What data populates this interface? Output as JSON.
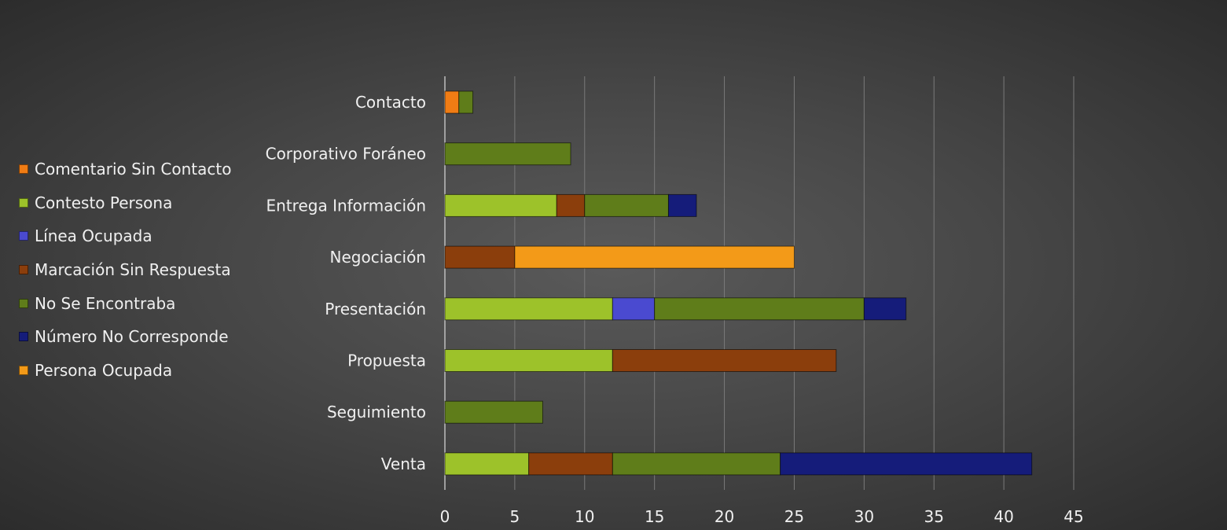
{
  "chart_data": {
    "type": "bar",
    "orientation": "horizontal",
    "stacked": true,
    "title": "",
    "xlabel": "",
    "ylabel": "",
    "xlim": [
      0,
      45
    ],
    "x_ticks": [
      0,
      5,
      10,
      15,
      20,
      25,
      30,
      35,
      40,
      45
    ],
    "grid": true,
    "legend_position": "left",
    "categories": [
      "Contacto",
      "Corporativo Foráneo",
      "Entrega Información",
      "Negociación",
      "Presentación",
      "Propuesta",
      "Seguimiento",
      "Venta"
    ],
    "series": [
      {
        "name": "Comentario Sin Contacto",
        "color": "#f07c14",
        "values": [
          1,
          0,
          0,
          0,
          0,
          0,
          0,
          0
        ]
      },
      {
        "name": "Contesto Persona",
        "color": "#9dc22a",
        "values": [
          0,
          0,
          8,
          0,
          12,
          12,
          0,
          6
        ]
      },
      {
        "name": "Línea Ocupada",
        "color": "#4a4ad0",
        "values": [
          0,
          0,
          0,
          0,
          3,
          0,
          0,
          0
        ]
      },
      {
        "name": "Marcación Sin Respuesta",
        "color": "#8b3e0c",
        "values": [
          0,
          0,
          2,
          5,
          0,
          16,
          0,
          6
        ]
      },
      {
        "name": "No Se Encontraba",
        "color": "#5f7d1a",
        "values": [
          1,
          9,
          6,
          0,
          15,
          0,
          7,
          12
        ]
      },
      {
        "name": "Número No Corresponde",
        "color": "#151c7a",
        "values": [
          0,
          0,
          2,
          0,
          3,
          0,
          0,
          18
        ]
      },
      {
        "name": "Persona Ocupada",
        "color": "#f39a18",
        "values": [
          0,
          0,
          0,
          20,
          0,
          0,
          0,
          0
        ]
      }
    ]
  }
}
